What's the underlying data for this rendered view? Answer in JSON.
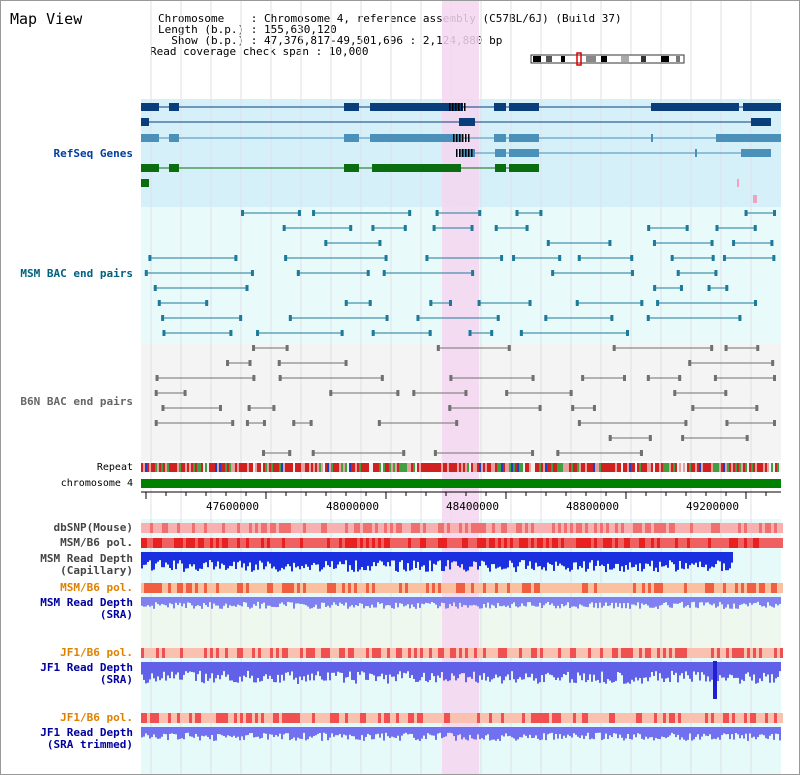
{
  "header": {
    "title": "Map View",
    "info_lines": [
      "Chromosome    : Chromosome 4, reference assembly (C57BL/6J) (Build 37)",
      "Length (b.p.) : 155,630,120",
      "  Show (b.p.) : 47,376,817-49,501,696 : 2,124,880 bp",
      "Read coverage check span : 10,000"
    ]
  },
  "tracks": {
    "refseq": {
      "label": "RefSeq Genes",
      "color": "#003ea0"
    },
    "msm_bac": {
      "label": "MSM BAC end pairs",
      "color": "#006080"
    },
    "b6n_bac": {
      "label": "B6N BAC end pairs",
      "color": "#666666"
    },
    "repeat": {
      "label": "Repeat"
    },
    "chromosome": {
      "label": "chromosome 4"
    },
    "dbsnp": {
      "label": "dbSNP(Mouse)"
    },
    "msm_b6_pol_cap": {
      "label": "MSM/B6 pol."
    },
    "msm_depth_cap": {
      "label1": "MSM Read Depth",
      "label2": "(Capillary)"
    },
    "msm_b6_pol_sra": {
      "label": "MSM/B6 pol."
    },
    "msm_depth_sra": {
      "label1": "MSM Read Depth",
      "label2": "(SRA)"
    },
    "jf1_b6_pol": {
      "label": "JF1/B6 pol."
    },
    "jf1_depth": {
      "label1": "JF1 Read Depth",
      "label2": "(SRA)"
    },
    "jf1_b6_pol2": {
      "label": "JF1/B6 pol."
    },
    "jf1_depth_trim": {
      "label1": "JF1 Read Depth",
      "label2": "(SRA trimmed)"
    }
  },
  "axis": {
    "ticks": [
      "47600000",
      "48000000",
      "48400000",
      "48800000",
      "49200000"
    ]
  },
  "colors": {
    "refseq_bg": "#d6f0fa",
    "bac_bg": "#e8fafa",
    "b6n_bg": "#f4f4f4",
    "highlight": "#f5d6f0",
    "chrom_bar": "#008000",
    "msm_label": "#006080",
    "pol_label": "#e08000",
    "depth_label": "#0000a0"
  }
}
